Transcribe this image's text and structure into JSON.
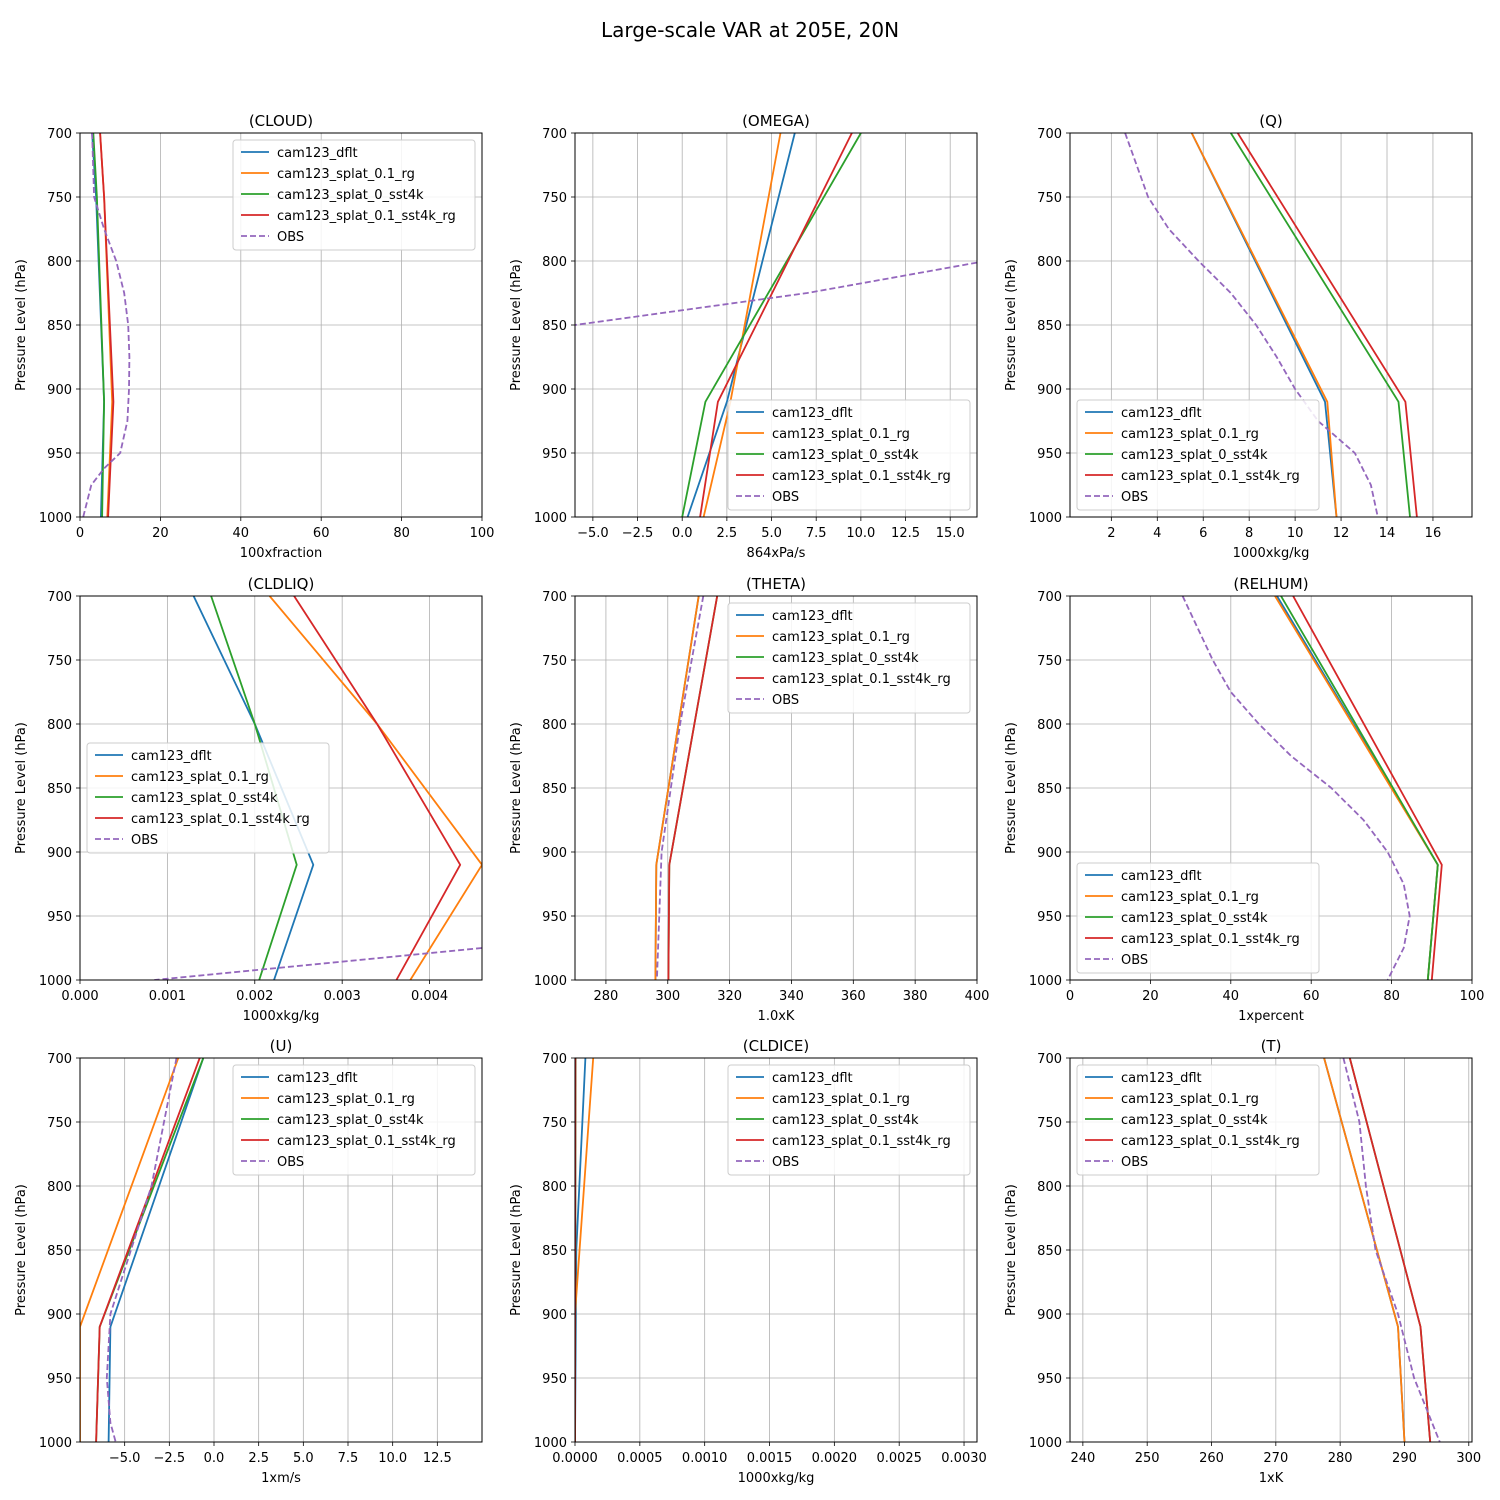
{
  "figure_title": "Large-scale VAR at 205E, 20N",
  "ylabel": "Pressure Level (hPa)",
  "levels": [
    700,
    750,
    800,
    850,
    900,
    950,
    1000
  ],
  "ylim": [
    1000,
    700
  ],
  "colors": {
    "cam123_dflt": "#1f77b4",
    "cam123_splat_0.1_rg": "#ff7f0e",
    "cam123_splat_0_sst4k": "#2ca02c",
    "cam123_splat_0.1_sst4k_rg": "#d62728",
    "OBS": "#9467bd"
  },
  "chart_data": [
    {
      "type": "line",
      "title": "(CLOUD)",
      "xlabel": "100xfraction",
      "xlim": [
        0,
        100
      ],
      "xticks": [
        "0",
        "20",
        "40",
        "60",
        "80",
        "100"
      ],
      "xtick_values": [
        0,
        20,
        40,
        60,
        80,
        100
      ],
      "legend": "top-right",
      "series": [
        {
          "name": "cam123_dflt",
          "y": [
            700,
            750,
            910,
            1000
          ],
          "x": [
            3,
            4,
            6,
            5.2
          ]
        },
        {
          "name": "cam123_splat_0.1_rg",
          "y": [
            700,
            750,
            910,
            1000
          ],
          "x": [
            5,
            6,
            8,
            6.8
          ]
        },
        {
          "name": "cam123_splat_0_sst4k",
          "y": [
            700,
            750,
            910,
            1000
          ],
          "x": [
            3.3,
            4.2,
            6,
            5.5
          ]
        },
        {
          "name": "cam123_splat_0.1_sst4k_rg",
          "y": [
            700,
            750,
            910,
            1000
          ],
          "x": [
            5,
            6,
            8.3,
            7
          ]
        },
        {
          "name": "OBS",
          "y": [
            700,
            750,
            775,
            800,
            825,
            850,
            875,
            900,
            925,
            950,
            962,
            975,
            1000
          ],
          "x": [
            3,
            3.5,
            6,
            9,
            11,
            12,
            12.3,
            12.2,
            11.8,
            10,
            6,
            2.8,
            0.8
          ]
        }
      ]
    },
    {
      "type": "line",
      "title": "(OMEGA)",
      "xlabel": "864xPa/s",
      "xlim": [
        -6,
        16.5
      ],
      "xticks": [
        "−5.0",
        "−2.5",
        "0.0",
        "2.5",
        "5.0",
        "7.5",
        "10.0",
        "12.5",
        "15.0"
      ],
      "xtick_values": [
        -5,
        -2.5,
        0,
        2.5,
        5,
        7.5,
        10,
        12.5,
        15
      ],
      "legend": "bottom-right",
      "series": [
        {
          "name": "cam123_dflt",
          "y": [
            700,
            910,
            1000
          ],
          "x": [
            6.3,
            2.5,
            0.3
          ]
        },
        {
          "name": "cam123_splat_0.1_rg",
          "y": [
            700,
            910,
            1000
          ],
          "x": [
            5.5,
            2.7,
            1.2
          ]
        },
        {
          "name": "cam123_splat_0_sst4k",
          "y": [
            700,
            910,
            1000
          ],
          "x": [
            10,
            1.3,
            0
          ]
        },
        {
          "name": "cam123_splat_0.1_sst4k_rg",
          "y": [
            700,
            910,
            1000
          ],
          "x": [
            9.5,
            2,
            1
          ]
        },
        {
          "name": "OBS",
          "y": [
            800,
            825,
            850
          ],
          "x": [
            17,
            7,
            -6
          ]
        }
      ]
    },
    {
      "type": "line",
      "title": "(Q)",
      "xlabel": "1000xkg/kg",
      "xlim": [
        0.2,
        17.7
      ],
      "xticks": [
        "2",
        "4",
        "6",
        "8",
        "10",
        "12",
        "14",
        "16"
      ],
      "xtick_values": [
        2,
        4,
        6,
        8,
        10,
        12,
        14,
        16
      ],
      "legend": "bottom-left",
      "series": [
        {
          "name": "cam123_dflt",
          "y": [
            700,
            910,
            1000
          ],
          "x": [
            5.5,
            11.3,
            11.8
          ]
        },
        {
          "name": "cam123_splat_0.1_rg",
          "y": [
            700,
            910,
            1000
          ],
          "x": [
            5.5,
            11.4,
            11.8
          ]
        },
        {
          "name": "cam123_splat_0_sst4k",
          "y": [
            700,
            910,
            1000
          ],
          "x": [
            7.2,
            14.5,
            15
          ]
        },
        {
          "name": "cam123_splat_0.1_sst4k_rg",
          "y": [
            700,
            910,
            1000
          ],
          "x": [
            7.5,
            14.8,
            15.3
          ]
        },
        {
          "name": "OBS",
          "y": [
            700,
            750,
            775,
            800,
            825,
            850,
            875,
            900,
            925,
            950,
            975,
            1000
          ],
          "x": [
            2.6,
            3.6,
            4.5,
            5.8,
            7.2,
            8.3,
            9.2,
            10,
            11,
            12.6,
            13.3,
            13.6
          ]
        }
      ]
    },
    {
      "type": "line",
      "title": "(CLDLIQ)",
      "xlabel": "1000xkg/kg",
      "xlim": [
        0,
        0.0046
      ],
      "xticks": [
        "0.000",
        "0.001",
        "0.002",
        "0.003",
        "0.004"
      ],
      "xtick_values": [
        0,
        0.001,
        0.002,
        0.003,
        0.004
      ],
      "legend": "center-left",
      "series": [
        {
          "name": "cam123_dflt",
          "y": [
            700,
            800,
            910,
            1000
          ],
          "x": [
            0.0013,
            0.002,
            0.00267,
            0.00222
          ]
        },
        {
          "name": "cam123_splat_0.1_rg",
          "y": [
            700,
            800,
            910,
            1000
          ],
          "x": [
            0.00217,
            0.0034,
            0.0046,
            0.00378
          ]
        },
        {
          "name": "cam123_splat_0_sst4k",
          "y": [
            700,
            800,
            910,
            1000
          ],
          "x": [
            0.0015,
            0.002,
            0.00248,
            0.00205
          ]
        },
        {
          "name": "cam123_splat_0.1_sst4k_rg",
          "y": [
            700,
            800,
            910,
            1000
          ],
          "x": [
            0.00245,
            0.0034,
            0.00435,
            0.00362
          ]
        },
        {
          "name": "OBS",
          "y": [
            975,
            1000
          ],
          "x": [
            0.0046,
            0.00085
          ]
        }
      ]
    },
    {
      "type": "line",
      "title": "(THETA)",
      "xlabel": "1.0xK",
      "xlim": [
        270,
        400
      ],
      "xticks": [
        "280",
        "300",
        "320",
        "340",
        "360",
        "380",
        "400"
      ],
      "xtick_values": [
        280,
        300,
        320,
        340,
        360,
        380,
        400
      ],
      "legend": "top-right",
      "series": [
        {
          "name": "cam123_dflt",
          "y": [
            700,
            910,
            1000
          ],
          "x": [
            310,
            296.3,
            296
          ]
        },
        {
          "name": "cam123_splat_0.1_rg",
          "y": [
            700,
            910,
            1000
          ],
          "x": [
            310,
            296.3,
            296
          ]
        },
        {
          "name": "cam123_splat_0_sst4k",
          "y": [
            700,
            910,
            1000
          ],
          "x": [
            316,
            300.5,
            300.2
          ]
        },
        {
          "name": "cam123_splat_0.1_sst4k_rg",
          "y": [
            700,
            910,
            1000
          ],
          "x": [
            316,
            300.5,
            300.2
          ]
        },
        {
          "name": "OBS",
          "y": [
            700,
            800,
            900,
            1000
          ],
          "x": [
            311.5,
            304,
            298,
            296.5
          ]
        }
      ]
    },
    {
      "type": "line",
      "title": "(RELHUM)",
      "xlabel": "1xpercent",
      "xlim": [
        0,
        100
      ],
      "xticks": [
        "0",
        "20",
        "40",
        "60",
        "80",
        "100"
      ],
      "xtick_values": [
        0,
        20,
        40,
        60,
        80,
        100
      ],
      "legend": "bottom-left",
      "series": [
        {
          "name": "cam123_dflt",
          "y": [
            700,
            910,
            1000
          ],
          "x": [
            51.5,
            91.5,
            89
          ]
        },
        {
          "name": "cam123_splat_0.1_rg",
          "y": [
            700,
            910,
            1000
          ],
          "x": [
            51,
            91.5,
            89
          ]
        },
        {
          "name": "cam123_splat_0_sst4k",
          "y": [
            700,
            910,
            1000
          ],
          "x": [
            52.5,
            91.5,
            89
          ]
        },
        {
          "name": "cam123_splat_0.1_sst4k_rg",
          "y": [
            700,
            910,
            1000
          ],
          "x": [
            55.5,
            92.5,
            90
          ]
        },
        {
          "name": "OBS",
          "y": [
            700,
            750,
            775,
            800,
            825,
            850,
            875,
            900,
            925,
            950,
            975,
            1000
          ],
          "x": [
            28,
            35.5,
            40,
            47,
            55,
            65,
            73,
            79,
            83,
            84.5,
            83,
            79
          ]
        }
      ]
    },
    {
      "type": "line",
      "title": "(U)",
      "xlabel": "1xm/s",
      "xlim": [
        -7.5,
        15
      ],
      "xticks": [
        "−5.0",
        "−2.5",
        "0.0",
        "2.5",
        "5.0",
        "7.5",
        "10.0",
        "12.5"
      ],
      "xtick_values": [
        -5,
        -2.5,
        0,
        2.5,
        5,
        7.5,
        10,
        12.5
      ],
      "legend": "top-right",
      "series": [
        {
          "name": "cam123_dflt",
          "y": [
            700,
            910,
            1000
          ],
          "x": [
            -0.6,
            -5.8,
            -5.9
          ]
        },
        {
          "name": "cam123_splat_0.1_rg",
          "y": [
            700,
            910,
            1000
          ],
          "x": [
            -2,
            -7.5,
            -7.5
          ]
        },
        {
          "name": "cam123_splat_0_sst4k",
          "y": [
            700,
            910,
            1000
          ],
          "x": [
            -0.6,
            -6.4,
            -6.6
          ]
        },
        {
          "name": "cam123_splat_0.1_sst4k_rg",
          "y": [
            700,
            910,
            1000
          ],
          "x": [
            -0.8,
            -6.4,
            -6.6
          ]
        },
        {
          "name": "OBS",
          "y": [
            700,
            800,
            900,
            950,
            985,
            1000
          ],
          "x": [
            -2.1,
            -3.5,
            -5.8,
            -6,
            -5.8,
            -5.5
          ]
        }
      ]
    },
    {
      "type": "line",
      "title": "(CLDICE)",
      "xlabel": "1000xkg/kg",
      "xlim": [
        0,
        0.0031
      ],
      "xticks": [
        "0.0000",
        "0.0005",
        "0.0010",
        "0.0015",
        "0.0020",
        "0.0025",
        "0.0030"
      ],
      "xtick_values": [
        0,
        0.0005,
        0.001,
        0.0015,
        0.002,
        0.0025,
        0.003
      ],
      "legend": "top-right",
      "series": [
        {
          "name": "cam123_dflt",
          "y": [
            700,
            850,
            1000
          ],
          "x": [
            8e-05,
            1e-05,
            0
          ]
        },
        {
          "name": "cam123_splat_0.1_rg",
          "y": [
            700,
            900,
            1000
          ],
          "x": [
            0.00014,
            0,
            0
          ]
        },
        {
          "name": "cam123_splat_0_sst4k",
          "y": [
            700,
            1000
          ],
          "x": [
            5e-06,
            0
          ]
        },
        {
          "name": "cam123_splat_0.1_sst4k_rg",
          "y": [
            700,
            1000
          ],
          "x": [
            3e-06,
            0
          ]
        },
        {
          "name": "OBS",
          "y": [],
          "x": []
        }
      ]
    },
    {
      "type": "line",
      "title": "(T)",
      "xlabel": "1xK",
      "xlim": [
        238,
        300.5
      ],
      "xticks": [
        "240",
        "250",
        "260",
        "270",
        "280",
        "290",
        "300"
      ],
      "xtick_values": [
        240,
        250,
        260,
        270,
        280,
        290,
        300
      ],
      "legend": "top-left",
      "series": [
        {
          "name": "cam123_dflt",
          "y": [
            700,
            910,
            1000
          ],
          "x": [
            277.5,
            289,
            290
          ]
        },
        {
          "name": "cam123_splat_0.1_rg",
          "y": [
            700,
            910,
            1000
          ],
          "x": [
            277.5,
            289,
            290
          ]
        },
        {
          "name": "cam123_splat_0_sst4k",
          "y": [
            700,
            910,
            1000
          ],
          "x": [
            281.5,
            292.5,
            294
          ]
        },
        {
          "name": "cam123_splat_0.1_sst4k_rg",
          "y": [
            700,
            910,
            1000
          ],
          "x": [
            281.5,
            292.5,
            294
          ]
        },
        {
          "name": "OBS",
          "y": [
            700,
            750,
            800,
            850,
            900,
            950,
            1000
          ],
          "x": [
            280.5,
            283,
            284,
            285.5,
            289,
            291.5,
            295.5
          ]
        }
      ]
    }
  ]
}
